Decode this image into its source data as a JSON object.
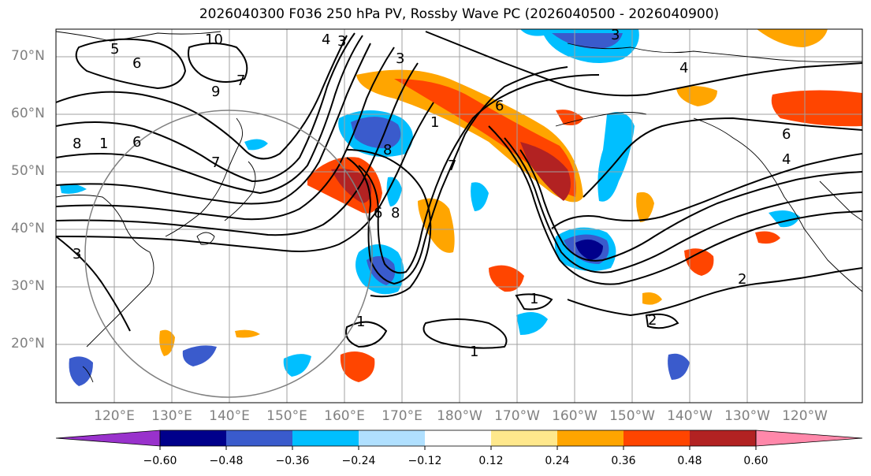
{
  "title": "2026040300 F036 250 hPa PV, Rossby Wave PC (2026040500 - 2026040900)",
  "lat_labels": [
    "70°N",
    "60°N",
    "50°N",
    "40°N",
    "30°N",
    "20°N"
  ],
  "lon_labels": [
    "120°E",
    "130°E",
    "140°E",
    "150°E",
    "160°E",
    "170°E",
    "180°W",
    "170°W",
    "160°W",
    "150°W",
    "140°W",
    "130°W",
    "120°W"
  ],
  "contour_labels": [
    "5",
    "6",
    "10",
    "4",
    "3",
    "9",
    "7",
    "1",
    "8",
    "6",
    "1",
    "3",
    "6",
    "4",
    "6",
    "4",
    "8",
    "7",
    "6",
    "8",
    "7",
    "3",
    "3",
    "2",
    "1",
    "1",
    "1",
    "2"
  ],
  "colorbar": {
    "colors": [
      "#9932cc",
      "#00008b",
      "#3a5bcc",
      "#00bfff",
      "#b0e0ff",
      "#ffffff",
      "#ffe88c",
      "#ffa500",
      "#ff4500",
      "#b22222",
      "#ff88aa"
    ],
    "tick_labels": [
      "−0.60",
      "−0.48",
      "−0.36",
      "−0.24",
      "−0.12",
      "0.12",
      "0.24",
      "0.36",
      "0.48",
      "0.60"
    ]
  }
}
